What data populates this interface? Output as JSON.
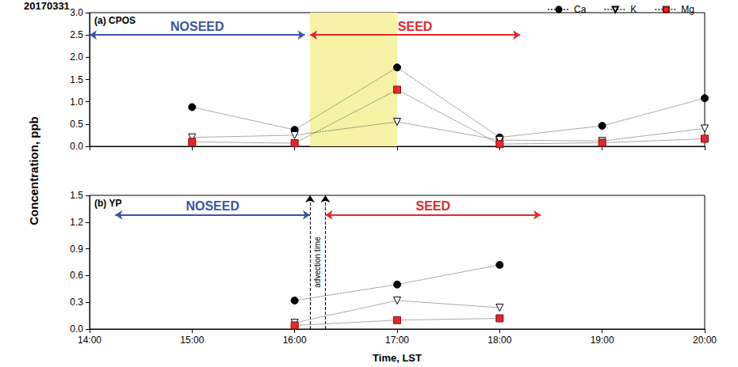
{
  "chart_data": [
    {
      "type": "line",
      "title": "20170331",
      "subtitle": "(a) CPOS",
      "ylabel": "Concentration, ppb",
      "x": [
        15,
        16,
        17,
        18,
        19,
        20
      ],
      "series": [
        {
          "name": "Ca",
          "color": "#000000",
          "marker": "circle",
          "values": [
            0.88,
            0.37,
            1.77,
            0.2,
            0.46,
            1.08
          ]
        },
        {
          "name": "K",
          "color": "#ffffff",
          "marker": "triangle-down",
          "values": [
            0.2,
            0.25,
            0.55,
            0.14,
            0.12,
            0.4
          ]
        },
        {
          "name": "Mg",
          "color": "#e8262a",
          "marker": "square",
          "values": [
            0.1,
            0.07,
            1.27,
            0.05,
            0.08,
            0.17
          ]
        }
      ],
      "line_style": "dotted",
      "xlim": [
        14,
        20
      ],
      "xticks": [
        {
          "value": 14,
          "label": "14:00"
        },
        {
          "value": 15,
          "label": "15:00"
        },
        {
          "value": 16,
          "label": "16:00"
        },
        {
          "value": 17,
          "label": "17:00"
        },
        {
          "value": 18,
          "label": "18:00"
        },
        {
          "value": 19,
          "label": "19:00"
        },
        {
          "value": 20,
          "label": "20:00"
        }
      ],
      "ylim": [
        0,
        3
      ],
      "yticks": [
        {
          "value": 0,
          "label": "0.0"
        },
        0.5,
        {
          "value": 1,
          "label": "1.0"
        },
        1.5,
        {
          "value": 2,
          "label": "2.0"
        },
        2.5,
        {
          "value": 3,
          "label": "3.0"
        }
      ],
      "grid": false,
      "legend": "upper right",
      "tick_labels": "y",
      "shaded": {
        "x": [
          16.15,
          17
        ],
        "color": "#f6f2a6"
      },
      "annotations": [
        {
          "text": "NOSEED",
          "x": [
            14,
            16.1
          ],
          "y": 2.5,
          "color": "#3a54a4"
        },
        {
          "text": "SEED",
          "x": [
            16.15,
            18.2
          ],
          "y": 2.5,
          "color": "#e8262a"
        }
      ]
    },
    {
      "type": "line",
      "subtitle": "(b) YP",
      "xlabel": "Time, LST",
      "x": [
        15,
        16,
        17,
        18,
        19,
        20
      ],
      "series": [
        {
          "name": "Ca",
          "color": "#000000",
          "marker": "circle",
          "values": [
            null,
            0.32,
            0.5,
            0.72,
            null,
            null
          ]
        },
        {
          "name": "K",
          "color": "#ffffff",
          "marker": "triangle-down",
          "values": [
            null,
            0.07,
            0.32,
            0.24,
            null,
            null
          ]
        },
        {
          "name": "Mg",
          "color": "#e8262a",
          "marker": "square",
          "values": [
            null,
            0.04,
            0.1,
            0.12,
            null,
            null
          ]
        }
      ],
      "line_style": "dotted",
      "xlim": [
        14,
        20
      ],
      "xticks": [
        {
          "value": 14,
          "label": "14:00"
        },
        {
          "value": 15,
          "label": "15:00"
        },
        {
          "value": 16,
          "label": "16:00"
        },
        {
          "value": 17,
          "label": "17:00"
        },
        {
          "value": 18,
          "label": "18:00"
        },
        {
          "value": 19,
          "label": "19:00"
        },
        {
          "value": 20,
          "label": "20:00"
        }
      ],
      "ylim": [
        0,
        1.5
      ],
      "yticks": [
        {
          "value": 0,
          "label": "0.0"
        },
        0.3,
        0.6,
        0.9,
        1.2,
        1.5
      ],
      "grid": false,
      "vlines": {
        "x": [
          16.15,
          16.3
        ],
        "text": "advection time"
      },
      "annotations": [
        {
          "text": "NOSEED",
          "x": [
            14.25,
            16.15
          ],
          "y": 1.28,
          "color": "#3a54a4"
        },
        {
          "text": "SEED",
          "x": [
            16.3,
            18.4
          ],
          "y": 1.28,
          "color": "#e8262a"
        }
      ]
    }
  ]
}
